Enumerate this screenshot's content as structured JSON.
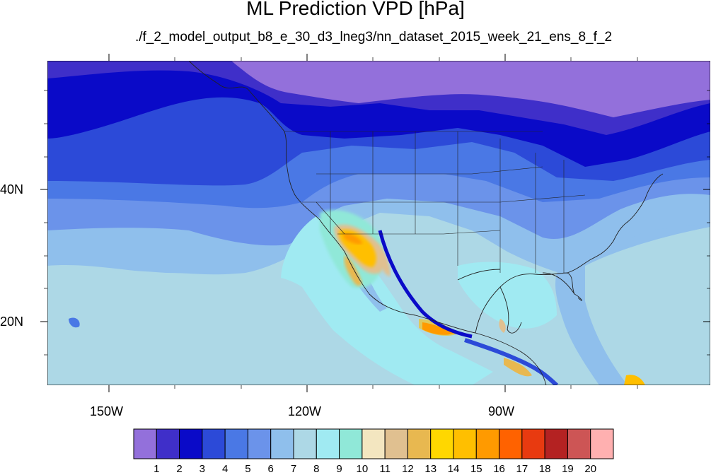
{
  "title": "ML Prediction VPD [hPa]",
  "subtitle": "./f_2_model_output_b8_e_30_d3_lneg3/nn_dataset_2015_week_21_ens_8_f_2",
  "lat_labels": [
    "40N",
    "20N"
  ],
  "lon_labels": [
    "150W",
    "120W",
    "90W"
  ],
  "colorbar": {
    "labels": [
      "1",
      "2",
      "3",
      "4",
      "5",
      "6",
      "7",
      "8",
      "9",
      "10",
      "11",
      "12",
      "13",
      "14",
      "15",
      "16",
      "17",
      "18",
      "19",
      "20"
    ],
    "colors": [
      "#9370db",
      "#3f2fc9",
      "#0a0ac8",
      "#2c4ad8",
      "#4a78e5",
      "#6b93ea",
      "#8fbfec",
      "#add8e6",
      "#a0eaf2",
      "#90e8d8",
      "#f3e6c0",
      "#e0c090",
      "#e8b850",
      "#ffd700",
      "#ffbf00",
      "#ff9a00",
      "#ff6200",
      "#e83a10",
      "#b42222",
      "#cd5555",
      "#ffb0b0"
    ]
  }
}
